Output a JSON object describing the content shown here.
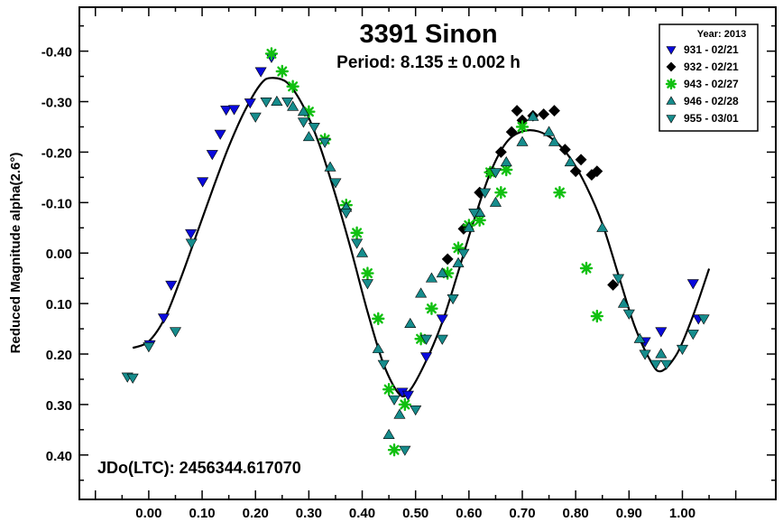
{
  "chart_data": {
    "type": "scatter",
    "title": "3391 Sinon",
    "subtitle": "Period: 8.135 ± 0.002 h",
    "ylabel": "Reduced Magnitude alpha(2.6°)",
    "xlabel": "",
    "annotation": "JDo(LTC): 2456344.617070",
    "xlim": [
      -0.13,
      1.175
    ],
    "ylim": [
      0.488,
      -0.487
    ],
    "y_inverted": true,
    "grid": false,
    "legend_position": "top-right",
    "legend_title": "Year: 2013",
    "x_ticks": [
      {
        "value": 0.0,
        "label": "0.00"
      },
      {
        "value": 0.1,
        "label": "0.10"
      },
      {
        "value": 0.2,
        "label": "0.20"
      },
      {
        "value": 0.3,
        "label": "0.30"
      },
      {
        "value": 0.4,
        "label": "0.40"
      },
      {
        "value": 0.5,
        "label": "0.50"
      },
      {
        "value": 0.6,
        "label": "0.60"
      },
      {
        "value": 0.7,
        "label": "0.70"
      },
      {
        "value": 0.8,
        "label": "0.80"
      },
      {
        "value": 0.9,
        "label": "0.90"
      },
      {
        "value": 1.0,
        "label": "1.00"
      }
    ],
    "y_ticks": [
      {
        "value": -0.4,
        "label": "-0.40"
      },
      {
        "value": -0.3,
        "label": "-0.30"
      },
      {
        "value": -0.2,
        "label": "-0.20"
      },
      {
        "value": -0.1,
        "label": "-0.10"
      },
      {
        "value": 0.0,
        "label": "0.00"
      },
      {
        "value": 0.1,
        "label": "0.10"
      },
      {
        "value": 0.2,
        "label": "0.20"
      },
      {
        "value": 0.3,
        "label": "0.30"
      },
      {
        "value": 0.4,
        "label": "0.40"
      }
    ],
    "fit_curve": [
      [
        -0.03,
        0.188
      ],
      [
        0.0,
        0.175
      ],
      [
        0.03,
        0.129
      ],
      [
        0.06,
        0.05
      ],
      [
        0.09,
        -0.038
      ],
      [
        0.12,
        -0.127
      ],
      [
        0.15,
        -0.211
      ],
      [
        0.18,
        -0.282
      ],
      [
        0.21,
        -0.335
      ],
      [
        0.23,
        -0.347
      ],
      [
        0.26,
        -0.337
      ],
      [
        0.29,
        -0.29
      ],
      [
        0.32,
        -0.214
      ],
      [
        0.35,
        -0.114
      ],
      [
        0.38,
        -0.003
      ],
      [
        0.41,
        0.116
      ],
      [
        0.44,
        0.22
      ],
      [
        0.47,
        0.28
      ],
      [
        0.49,
        0.271
      ],
      [
        0.52,
        0.213
      ],
      [
        0.55,
        0.137
      ],
      [
        0.58,
        0.037
      ],
      [
        0.61,
        -0.067
      ],
      [
        0.64,
        -0.159
      ],
      [
        0.67,
        -0.219
      ],
      [
        0.7,
        -0.241
      ],
      [
        0.73,
        -0.241
      ],
      [
        0.76,
        -0.223
      ],
      [
        0.79,
        -0.188
      ],
      [
        0.82,
        -0.132
      ],
      [
        0.85,
        -0.058
      ],
      [
        0.88,
        0.043
      ],
      [
        0.91,
        0.143
      ],
      [
        0.94,
        0.213
      ],
      [
        0.96,
        0.234
      ],
      [
        0.99,
        0.199
      ],
      [
        1.02,
        0.124
      ],
      [
        1.05,
        0.031
      ]
    ],
    "series": [
      {
        "name": "931 - 02/21",
        "color": "#0a0adc",
        "marker": "triangle-down",
        "points": [
          [
            0.002,
            0.181
          ],
          [
            0.028,
            0.128
          ],
          [
            0.042,
            0.063
          ],
          [
            0.079,
            -0.039
          ],
          [
            0.101,
            -0.142
          ],
          [
            0.119,
            -0.196
          ],
          [
            0.134,
            -0.236
          ],
          [
            0.145,
            -0.284
          ],
          [
            0.16,
            -0.285
          ],
          [
            0.19,
            -0.298
          ],
          [
            0.21,
            -0.36
          ],
          [
            0.23,
            -0.388
          ],
          [
            0.475,
            0.275
          ],
          [
            0.486,
            0.281
          ],
          [
            0.52,
            0.205
          ],
          [
            0.55,
            0.13
          ],
          [
            0.93,
            0.175
          ],
          [
            0.96,
            0.155
          ],
          [
            1.02,
            0.06
          ],
          [
            1.03,
            0.13
          ]
        ]
      },
      {
        "name": "932 - 02/21",
        "color": "#000000",
        "marker": "diamond",
        "points": [
          [
            0.56,
            0.012
          ],
          [
            0.59,
            -0.048
          ],
          [
            0.62,
            -0.12
          ],
          [
            0.64,
            -0.16
          ],
          [
            0.66,
            -0.2
          ],
          [
            0.68,
            -0.24
          ],
          [
            0.69,
            -0.282
          ],
          [
            0.7,
            -0.263
          ],
          [
            0.72,
            -0.272
          ],
          [
            0.74,
            -0.275
          ],
          [
            0.76,
            -0.282
          ],
          [
            0.78,
            -0.205
          ],
          [
            0.8,
            -0.162
          ],
          [
            0.81,
            -0.185
          ],
          [
            0.83,
            -0.155
          ],
          [
            0.84,
            -0.162
          ],
          [
            0.87,
            0.063
          ]
        ]
      },
      {
        "name": "943 - 02/27",
        "color": "#10c010",
        "marker": "asterisk",
        "points": [
          [
            0.23,
            -0.395
          ],
          [
            0.25,
            -0.36
          ],
          [
            0.27,
            -0.33
          ],
          [
            0.3,
            -0.28
          ],
          [
            0.33,
            -0.225
          ],
          [
            0.37,
            -0.095
          ],
          [
            0.39,
            -0.04
          ],
          [
            0.41,
            0.04
          ],
          [
            0.43,
            0.13
          ],
          [
            0.45,
            0.27
          ],
          [
            0.46,
            0.39
          ],
          [
            0.48,
            0.3
          ],
          [
            0.51,
            0.17
          ],
          [
            0.53,
            0.11
          ],
          [
            0.56,
            0.04
          ],
          [
            0.58,
            -0.01
          ],
          [
            0.6,
            -0.055
          ],
          [
            0.62,
            -0.065
          ],
          [
            0.64,
            -0.16
          ],
          [
            0.66,
            -0.12
          ],
          [
            0.67,
            -0.165
          ],
          [
            0.7,
            -0.25
          ],
          [
            0.77,
            -0.12
          ],
          [
            0.82,
            0.03
          ],
          [
            0.84,
            0.125
          ]
        ]
      },
      {
        "name": "946 - 02/28",
        "color": "#168c8c",
        "marker": "triangle-up",
        "points": [
          [
            0.24,
            -0.3
          ],
          [
            0.27,
            -0.29
          ],
          [
            0.29,
            -0.28
          ],
          [
            0.3,
            -0.23
          ],
          [
            0.34,
            -0.17
          ],
          [
            0.37,
            -0.09
          ],
          [
            0.4,
            0.0
          ],
          [
            0.43,
            0.19
          ],
          [
            0.45,
            0.36
          ],
          [
            0.47,
            0.32
          ],
          [
            0.49,
            0.14
          ],
          [
            0.51,
            0.08
          ],
          [
            0.53,
            0.05
          ],
          [
            0.55,
            0.04
          ],
          [
            0.58,
            0.02
          ],
          [
            0.6,
            -0.05
          ],
          [
            0.62,
            -0.08
          ],
          [
            0.65,
            -0.1
          ],
          [
            0.67,
            -0.18
          ],
          [
            0.7,
            -0.22
          ],
          [
            0.72,
            -0.27
          ],
          [
            0.75,
            -0.24
          ],
          [
            0.76,
            -0.22
          ],
          [
            0.79,
            -0.18
          ],
          [
            0.85,
            -0.05
          ],
          [
            0.89,
            0.1
          ],
          [
            0.92,
            0.17
          ],
          [
            0.96,
            0.2
          ]
        ]
      },
      {
        "name": "955 - 03/01",
        "color": "#168c8c",
        "marker": "triangle-down",
        "points": [
          [
            -0.04,
            0.245
          ],
          [
            -0.03,
            0.247
          ],
          [
            0.0,
            0.185
          ],
          [
            0.05,
            0.155
          ],
          [
            0.08,
            -0.02
          ],
          [
            0.2,
            -0.27
          ],
          [
            0.22,
            -0.3
          ],
          [
            0.26,
            -0.3
          ],
          [
            0.29,
            -0.26
          ],
          [
            0.31,
            -0.25
          ],
          [
            0.33,
            -0.22
          ],
          [
            0.35,
            -0.14
          ],
          [
            0.37,
            -0.08
          ],
          [
            0.39,
            -0.02
          ],
          [
            0.41,
            0.06
          ],
          [
            0.44,
            0.22
          ],
          [
            0.46,
            0.29
          ],
          [
            0.48,
            0.39
          ],
          [
            0.5,
            0.31
          ],
          [
            0.52,
            0.17
          ],
          [
            0.55,
            0.17
          ],
          [
            0.57,
            0.09
          ],
          [
            0.59,
            0.0
          ],
          [
            0.61,
            -0.08
          ],
          [
            0.63,
            -0.12
          ],
          [
            0.65,
            -0.16
          ],
          [
            0.88,
            0.05
          ],
          [
            0.9,
            0.12
          ],
          [
            0.93,
            0.2
          ],
          [
            0.95,
            0.22
          ],
          [
            0.97,
            0.22
          ],
          [
            1.0,
            0.19
          ],
          [
            1.02,
            0.16
          ],
          [
            1.04,
            0.13
          ]
        ]
      }
    ]
  }
}
